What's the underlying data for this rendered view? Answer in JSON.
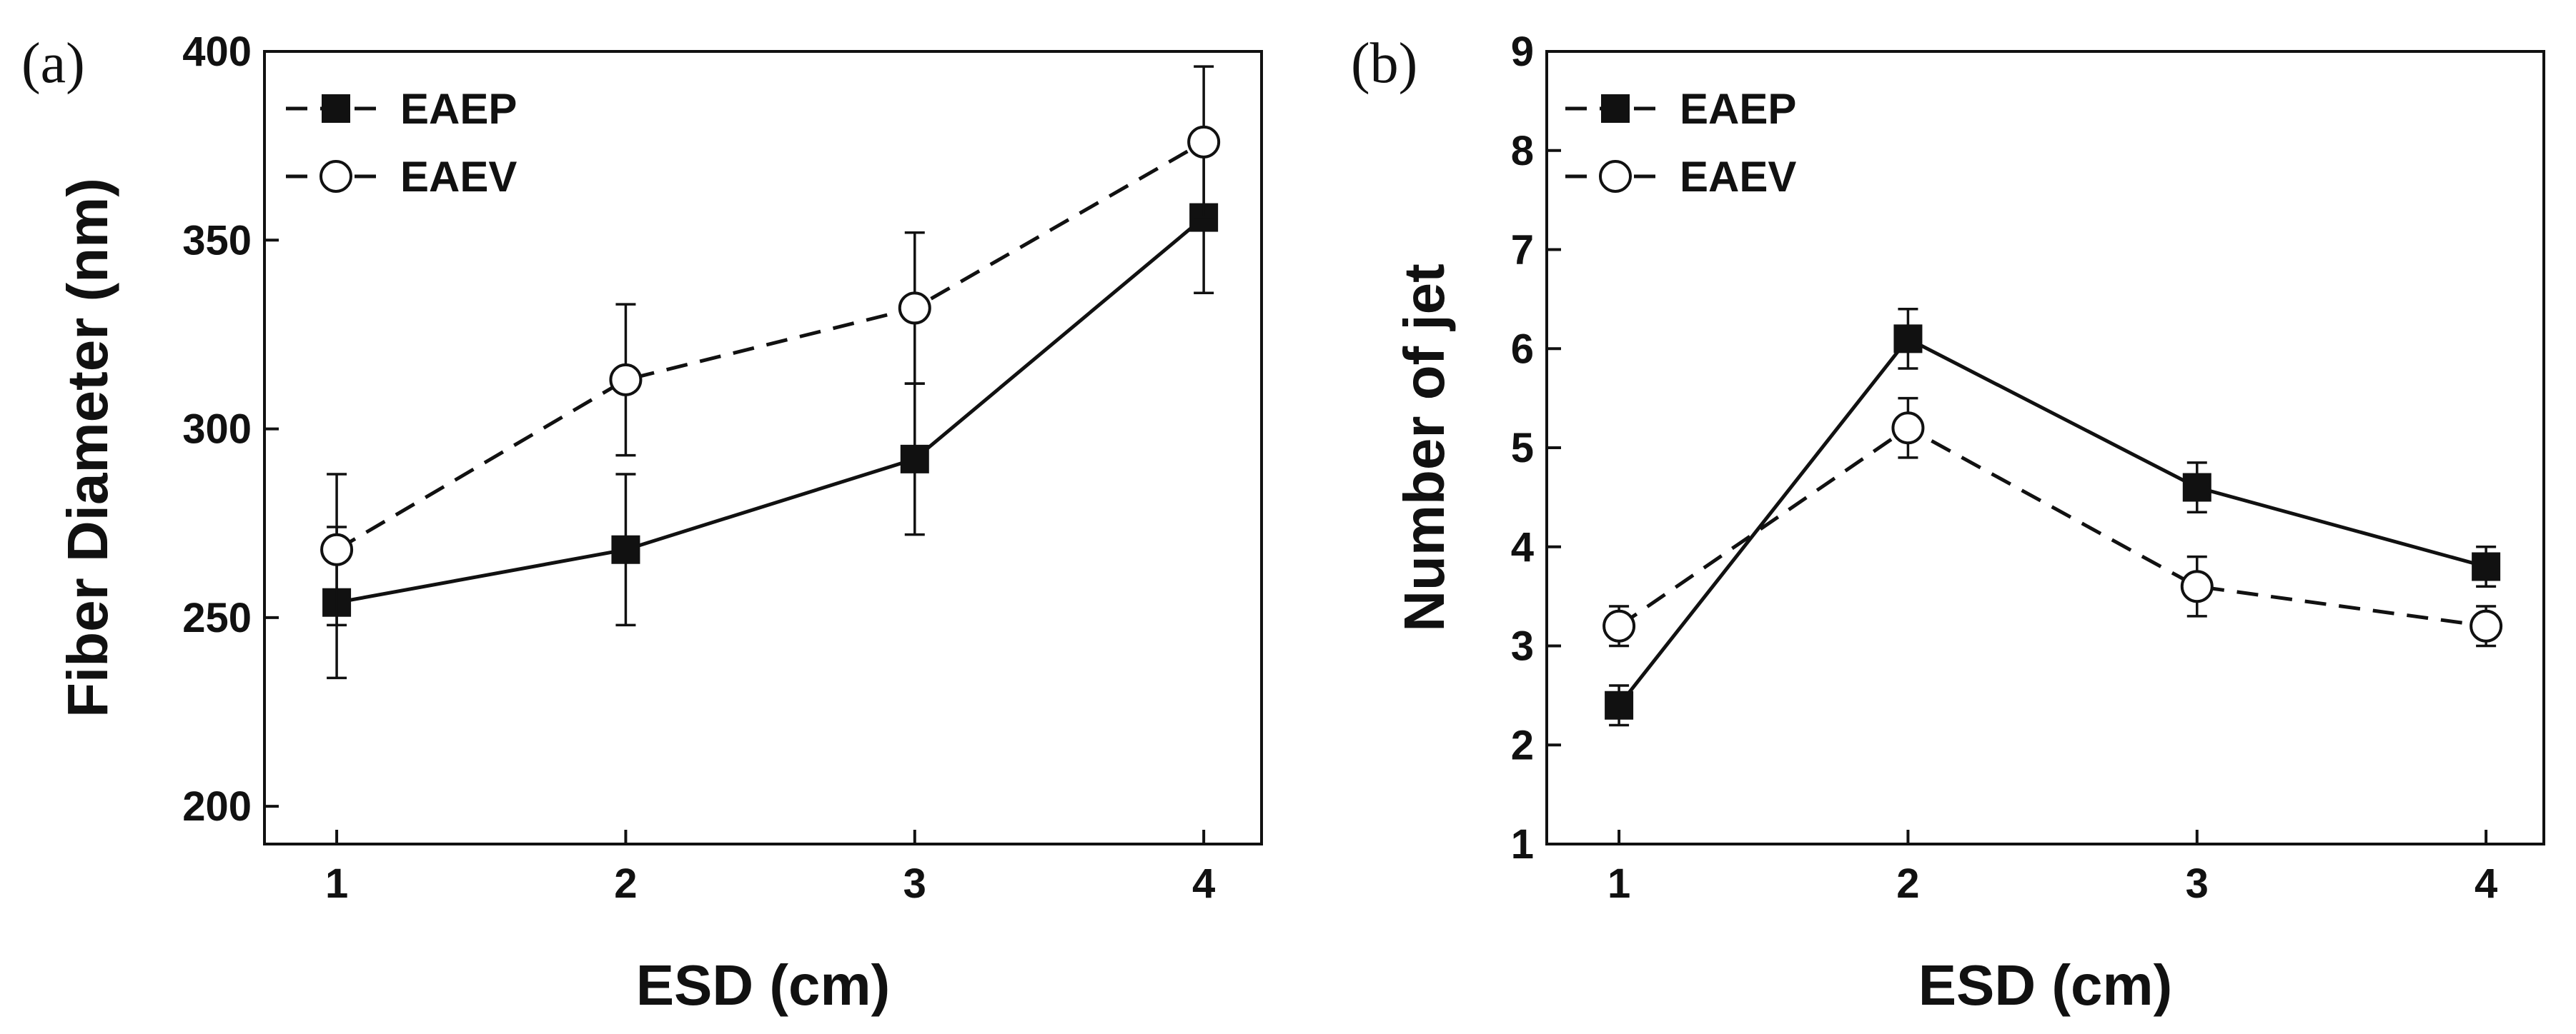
{
  "chart_data": [
    {
      "type": "line",
      "panel_label": "(a)",
      "xlabel": "ESD (cm)",
      "ylabel": "Fiber Diameter (nm)",
      "x": [
        1,
        2,
        3,
        4
      ],
      "xticks": [
        "1",
        "2",
        "3",
        "4"
      ],
      "xlim": [
        0.75,
        4.2
      ],
      "ylim": [
        190,
        400
      ],
      "yticks": [
        "200",
        "250",
        "300",
        "350",
        "400"
      ],
      "grid": false,
      "legend_position": "top-left",
      "series": [
        {
          "name": "EAEP",
          "marker": "filled-square",
          "line": "solid",
          "values": [
            254,
            268,
            292,
            356
          ],
          "errors": [
            20,
            20,
            20,
            20
          ]
        },
        {
          "name": "EAEV",
          "marker": "open-circle",
          "line": "dashed",
          "values": [
            268,
            313,
            332,
            376
          ],
          "errors": [
            20,
            20,
            20,
            20
          ]
        }
      ]
    },
    {
      "type": "line",
      "panel_label": "(b)",
      "xlabel": "ESD (cm)",
      "ylabel": "Number of jet",
      "x": [
        1,
        2,
        3,
        4
      ],
      "xticks": [
        "1",
        "2",
        "3",
        "4"
      ],
      "xlim": [
        0.75,
        4.2
      ],
      "ylim": [
        1,
        9
      ],
      "yticks": [
        "1",
        "2",
        "3",
        "4",
        "5",
        "6",
        "7",
        "8",
        "9"
      ],
      "grid": false,
      "legend_position": "top-left",
      "series": [
        {
          "name": "EAEP",
          "marker": "filled-square",
          "line": "solid",
          "values": [
            2.4,
            6.1,
            4.6,
            3.8
          ],
          "errors": [
            0.2,
            0.3,
            0.25,
            0.2
          ]
        },
        {
          "name": "EAEV",
          "marker": "open-circle",
          "line": "dashed",
          "values": [
            3.2,
            5.2,
            3.6,
            3.2
          ],
          "errors": [
            0.2,
            0.3,
            0.3,
            0.2
          ]
        }
      ]
    }
  ]
}
